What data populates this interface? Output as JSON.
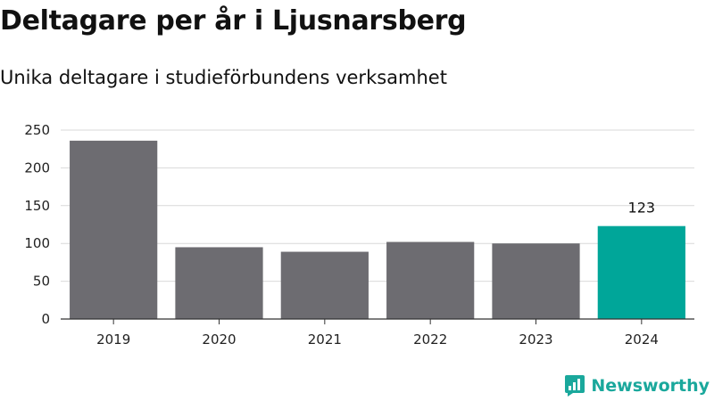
{
  "colors": {
    "bar": "#6d6c71",
    "highlight": "#00a699",
    "grid": "#d9d9d9",
    "axis": "#333333",
    "brand": "#1aa89c"
  },
  "brand": {
    "name": "Newsworthy",
    "icon": "newsworthy-logo-icon"
  },
  "chart_data": {
    "type": "bar",
    "title": "Deltagare per år i Ljusnarsberg",
    "subtitle": "Unika deltagare i studieförbundens verksamhet",
    "xlabel": "",
    "ylabel": "",
    "categories": [
      "2019",
      "2020",
      "2021",
      "2022",
      "2023",
      "2024"
    ],
    "values": [
      236,
      95,
      89,
      102,
      100,
      123
    ],
    "highlight_index": 5,
    "data_labels": [
      {
        "index": 5,
        "text": "123"
      }
    ],
    "ylim": [
      0,
      250
    ],
    "yticks": [
      0,
      50,
      100,
      150,
      200,
      250
    ],
    "grid": true,
    "legend": "none"
  }
}
